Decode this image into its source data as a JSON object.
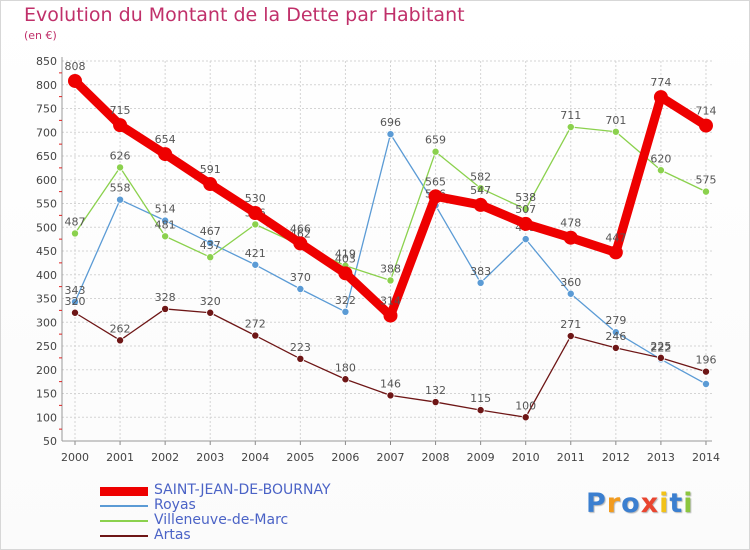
{
  "title": "Evolution du Montant de la Dette par Habitant",
  "unit": "(en €)",
  "brand": "Proxiti",
  "chart_data": {
    "type": "line",
    "title": "Evolution du Montant de la Dette par Habitant",
    "ylabel": "(en €)",
    "xlabel": "",
    "categories": [
      "2000",
      "2001",
      "2002",
      "2003",
      "2004",
      "2005",
      "2006",
      "2007",
      "2008",
      "2009",
      "2010",
      "2011",
      "2012",
      "2013",
      "2014"
    ],
    "ylim": [
      50,
      850
    ],
    "yticks": [
      50,
      100,
      150,
      200,
      250,
      300,
      350,
      400,
      450,
      500,
      550,
      600,
      650,
      700,
      750,
      800,
      850
    ],
    "grid": true,
    "legend_position": "bottom-left",
    "series": [
      {
        "name": "Royas",
        "color": "#5b9bd5",
        "values": [
          343,
          558,
          514,
          467,
          421,
          370,
          322,
          696,
          546,
          383,
          475,
          360,
          279,
          222,
          170
        ],
        "labels": [
          "343",
          "558",
          "514",
          "467",
          "421",
          "370",
          "322",
          "696",
          "546",
          "383",
          "475",
          "360",
          "279",
          "222",
          ""
        ]
      },
      {
        "name": "Villeneuve-de-Marc",
        "color": "#8bd14d",
        "values": [
          487,
          626,
          481,
          437,
          506,
          462,
          419,
          388,
          659,
          582,
          538,
          711,
          701,
          620,
          575
        ],
        "labels": [
          "487",
          "626",
          "481",
          "437",
          "506",
          "462",
          "419",
          "388",
          "659",
          "582",
          "538",
          "711",
          "701",
          "620",
          "575"
        ]
      },
      {
        "name": "Artas",
        "color": "#6e1616",
        "values": [
          320,
          262,
          328,
          320,
          272,
          223,
          180,
          146,
          132,
          115,
          100,
          271,
          246,
          225,
          196
        ],
        "labels": [
          "320",
          "262",
          "328",
          "320",
          "272",
          "223",
          "180",
          "146",
          "132",
          "115",
          "100",
          "271",
          "246",
          "225",
          "196"
        ]
      },
      {
        "name": "SAINT-JEAN-DE-BOURNAY",
        "color": "#ee0000",
        "values": [
          808,
          715,
          654,
          591,
          530,
          466,
          403,
          314,
          565,
          547,
          507,
          478,
          447,
          774,
          714
        ],
        "labels": [
          "808",
          "715",
          "654",
          "591",
          "530",
          "466",
          "403",
          "314",
          "565",
          "547",
          "507",
          "478",
          "447",
          "774",
          "714"
        ]
      }
    ]
  },
  "legend": [
    {
      "name": "SAINT-JEAN-DE-BOURNAY",
      "color": "#ee0000"
    },
    {
      "name": "Royas",
      "color": "#5b9bd5"
    },
    {
      "name": "Villeneuve-de-Marc",
      "color": "#8bd14d"
    },
    {
      "name": "Artas",
      "color": "#6e1616"
    }
  ],
  "brand_colors": [
    "#3b7fd0",
    "#f29b1e",
    "#3b7fd0",
    "#e9452f",
    "#f2c218",
    "#3b7fd0",
    "#8cc63f"
  ]
}
